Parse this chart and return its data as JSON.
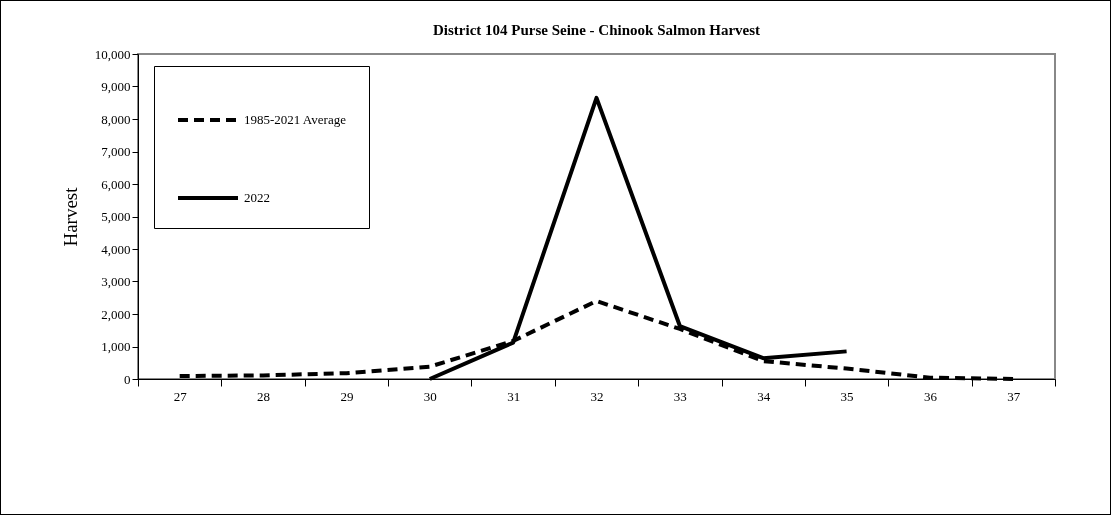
{
  "chart_data": {
    "type": "line",
    "title": "District 104 Purse Seine - Chinook Salmon Harvest",
    "ylabel": "Harvest",
    "categories": [
      "27",
      "28",
      "29",
      "30",
      "31",
      "32",
      "33",
      "34",
      "35",
      "36",
      "37"
    ],
    "series": [
      {
        "name": "1985-2021 Average",
        "color": "#000000",
        "line_style": "dashed",
        "values": [
          90,
          110,
          180,
          380,
          1170,
          2400,
          1540,
          550,
          320,
          40,
          0
        ]
      },
      {
        "name": "2022",
        "color": "#000000",
        "line_style": "solid",
        "values": [
          null,
          null,
          null,
          0,
          1120,
          8650,
          1630,
          640,
          850,
          null,
          null
        ]
      }
    ],
    "ylim": [
      0,
      10000
    ],
    "yticks": [
      0,
      {
        "value": 1000,
        "label": "1,000"
      },
      {
        "value": 2000,
        "label": "2,000"
      },
      {
        "value": 3000,
        "label": "3,000"
      },
      {
        "value": 4000,
        "label": "4,000"
      },
      {
        "value": 5000,
        "label": "5,000"
      },
      {
        "value": 6000,
        "label": "6,000"
      },
      {
        "value": 7000,
        "label": "7,000"
      },
      {
        "value": 8000,
        "label": "8,000"
      },
      {
        "value": 9000,
        "label": "9,000"
      },
      {
        "value": 10000,
        "label": "10,000"
      }
    ],
    "grid": false,
    "legend": "top left"
  }
}
